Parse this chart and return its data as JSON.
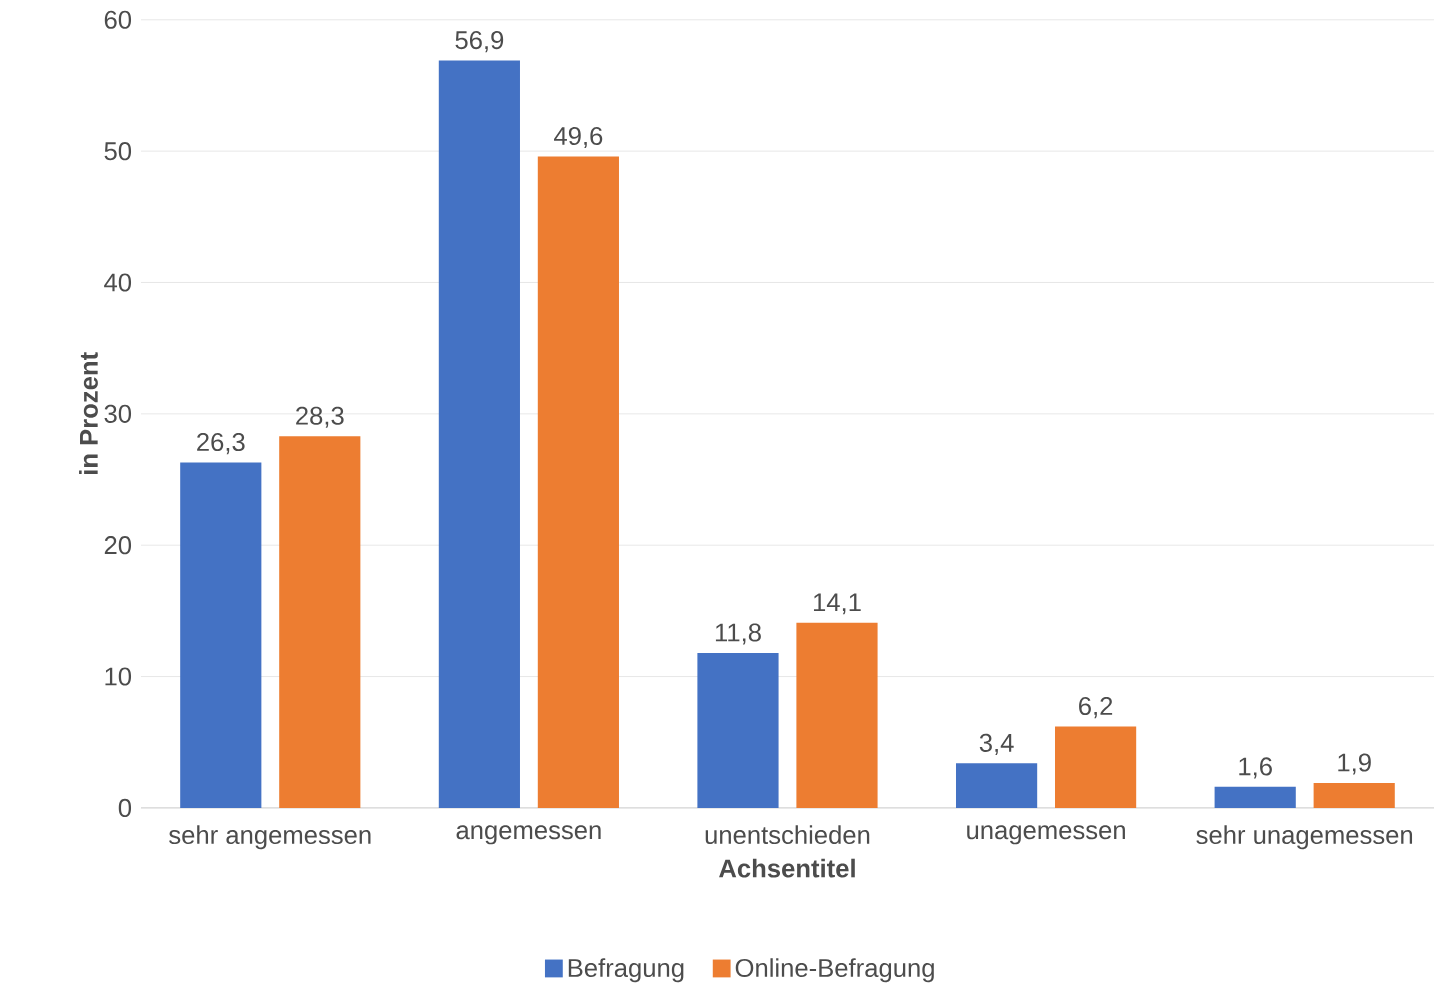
{
  "chart_data": {
    "type": "bar",
    "xlabel": "Achsentitel",
    "ylabel": "in Prozent",
    "categories": [
      "sehr angemessen",
      "angemessen",
      "unentschieden",
      "unagemessen",
      "sehr unagemessen"
    ],
    "series": [
      {
        "name": "Befragung",
        "color": "#4472c4",
        "values": [
          26.3,
          56.9,
          11.8,
          3.4,
          1.6
        ],
        "value_labels": [
          "26,3",
          "56,9",
          "11,8",
          "3,4",
          "1,6"
        ]
      },
      {
        "name": "Online-Befragung",
        "color": "#ed7d31",
        "values": [
          28.3,
          49.6,
          14.1,
          6.2,
          1.9
        ],
        "value_labels": [
          "28,3",
          "49,6",
          "14,1",
          "6,2",
          "1,9"
        ]
      }
    ],
    "ylim": [
      0,
      60
    ],
    "yticks": [
      0,
      10,
      20,
      30,
      40,
      50,
      60
    ],
    "grid": "y",
    "legend": "bottom"
  }
}
